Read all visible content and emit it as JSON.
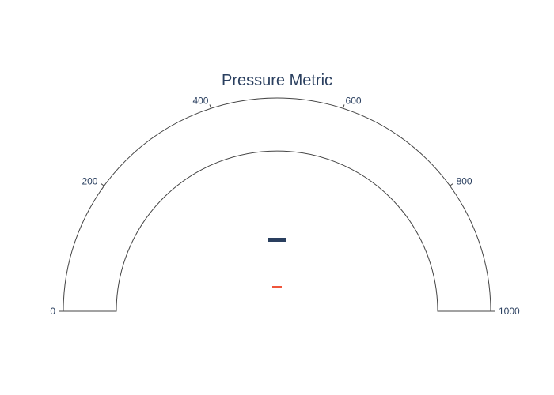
{
  "chart_data": {
    "type": "gauge",
    "title": "Pressure Metric",
    "range": [
      0,
      1000
    ],
    "ticks": [
      0,
      200,
      400,
      600,
      800,
      1000
    ],
    "tick_labels": [
      "0",
      "200",
      "400",
      "600",
      "800",
      "1000"
    ],
    "value": null,
    "value_display": "–",
    "delta_display": "–",
    "colors": {
      "title": "#2a3f5f",
      "outline": "#444444",
      "tick_label": "#2a3f5f",
      "value_text": "#2a3f5f",
      "delta_text": "#ef553b",
      "background": "#ffffff"
    }
  }
}
